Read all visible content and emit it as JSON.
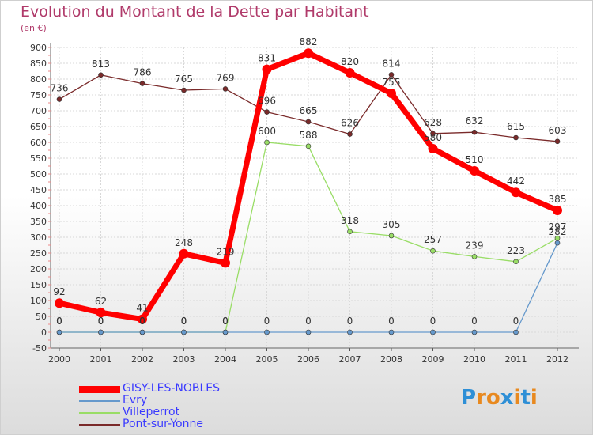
{
  "title": "Evolution du Montant de la Dette par Habitant",
  "unit": "(en €)",
  "logo": {
    "text": "Proxiti",
    "letters": [
      "P",
      "r",
      "o",
      "x",
      "i",
      "t",
      "i"
    ],
    "colors": [
      "#2e8fd6",
      "#e8891f",
      "#e8891f",
      "#2e8fd6",
      "#e8891f",
      "#2e8fd6",
      "#e8891f"
    ]
  },
  "chart_data": {
    "type": "line",
    "x": [
      "2000",
      "2001",
      "2002",
      "2003",
      "2004",
      "2005",
      "2006",
      "2007",
      "2008",
      "2009",
      "2010",
      "2011",
      "2012"
    ],
    "ylim": [
      -50,
      900
    ],
    "yticks": [
      -50,
      0,
      50,
      100,
      150,
      200,
      250,
      300,
      350,
      400,
      450,
      500,
      550,
      600,
      650,
      700,
      750,
      800,
      850,
      900
    ],
    "grid": true,
    "series": [
      {
        "name": "GISY-LES-NOBLES",
        "color": "#ff0000",
        "values": [
          92,
          62,
          41,
          248,
          219,
          831,
          882,
          820,
          755,
          580,
          510,
          442,
          385
        ],
        "labels": [
          "92",
          "62",
          "41",
          "248",
          "219",
          "831",
          "882",
          "820",
          "755",
          "580",
          "510",
          "442",
          "385"
        ]
      },
      {
        "name": "Evry",
        "color": "#6699cc",
        "values": [
          0,
          0,
          0,
          0,
          0,
          0,
          0,
          0,
          0,
          0,
          0,
          0,
          282
        ],
        "labels": [
          "0",
          "0",
          "0",
          "0",
          "0",
          "0",
          "0",
          "0",
          "0",
          "0",
          "0",
          "0",
          "282"
        ]
      },
      {
        "name": "Villeperrot",
        "color": "#99dd66",
        "values": [
          0,
          0,
          0,
          0,
          0,
          600,
          588,
          318,
          305,
          257,
          239,
          223,
          297
        ],
        "labels": [
          "0",
          "0",
          "0",
          "0",
          "0",
          "600",
          "588",
          "318",
          "305",
          "257",
          "239",
          "223",
          "297"
        ]
      },
      {
        "name": "Pont-sur-Yonne",
        "color": "#7a2a2a",
        "values": [
          736,
          813,
          786,
          765,
          769,
          696,
          665,
          626,
          814,
          628,
          632,
          615,
          603
        ],
        "labels": [
          "736",
          "813",
          "786",
          "765",
          "769",
          "696",
          "665",
          "626",
          "814",
          "628",
          "632",
          "615",
          "603"
        ]
      }
    ]
  }
}
